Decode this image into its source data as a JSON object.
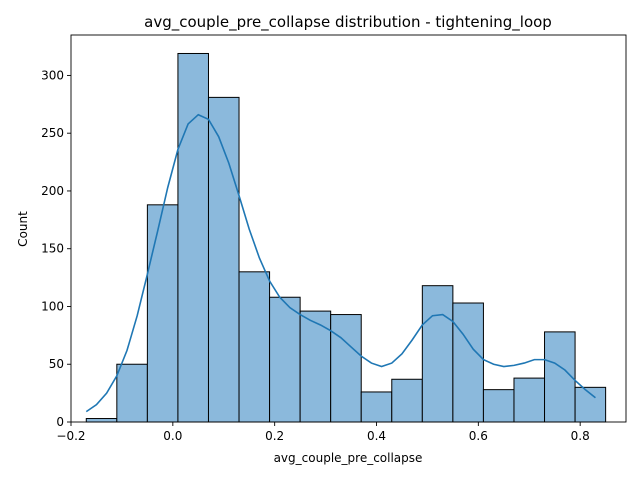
{
  "chart_data": {
    "type": "bar",
    "subtype": "histogram-with-kde",
    "title": "avg_couple_pre_collapse distribution - tightening_loop",
    "xlabel": "avg_couple_pre_collapse",
    "ylabel": "Count",
    "xlim": [
      -0.2,
      0.89
    ],
    "ylim": [
      0,
      335
    ],
    "xticks": [
      -0.2,
      0.0,
      0.2,
      0.4,
      0.6,
      0.8
    ],
    "xtick_labels": [
      "−0.2",
      "0.0",
      "0.2",
      "0.4",
      "0.6",
      "0.8"
    ],
    "yticks": [
      0,
      50,
      100,
      150,
      200,
      250,
      300
    ],
    "ytick_labels": [
      "0",
      "50",
      "100",
      "150",
      "200",
      "250",
      "300"
    ],
    "bins": [
      {
        "x0": -0.17,
        "x1": -0.11,
        "count": 3
      },
      {
        "x0": -0.11,
        "x1": -0.05,
        "count": 50
      },
      {
        "x0": -0.05,
        "x1": 0.01,
        "count": 188
      },
      {
        "x0": 0.01,
        "x1": 0.07,
        "count": 319
      },
      {
        "x0": 0.07,
        "x1": 0.13,
        "count": 281
      },
      {
        "x0": 0.13,
        "x1": 0.19,
        "count": 130
      },
      {
        "x0": 0.19,
        "x1": 0.25,
        "count": 108
      },
      {
        "x0": 0.25,
        "x1": 0.31,
        "count": 96
      },
      {
        "x0": 0.31,
        "x1": 0.37,
        "count": 93
      },
      {
        "x0": 0.37,
        "x1": 0.43,
        "count": 26
      },
      {
        "x0": 0.43,
        "x1": 0.49,
        "count": 37
      },
      {
        "x0": 0.49,
        "x1": 0.55,
        "count": 118
      },
      {
        "x0": 0.55,
        "x1": 0.61,
        "count": 103
      },
      {
        "x0": 0.61,
        "x1": 0.67,
        "count": 28
      },
      {
        "x0": 0.67,
        "x1": 0.73,
        "count": 38
      },
      {
        "x0": 0.73,
        "x1": 0.79,
        "count": 78
      },
      {
        "x0": 0.79,
        "x1": 0.85,
        "count": 30
      }
    ],
    "kde": {
      "x": [
        -0.17,
        -0.15,
        -0.13,
        -0.11,
        -0.09,
        -0.07,
        -0.05,
        -0.03,
        -0.01,
        0.01,
        0.03,
        0.05,
        0.07,
        0.09,
        0.11,
        0.13,
        0.15,
        0.17,
        0.19,
        0.21,
        0.23,
        0.25,
        0.27,
        0.29,
        0.31,
        0.33,
        0.35,
        0.37,
        0.39,
        0.41,
        0.43,
        0.45,
        0.47,
        0.49,
        0.51,
        0.53,
        0.55,
        0.57,
        0.59,
        0.61,
        0.63,
        0.65,
        0.67,
        0.69,
        0.71,
        0.73,
        0.75,
        0.77,
        0.79,
        0.81,
        0.83
      ],
      "y": [
        9,
        15,
        25,
        40,
        62,
        92,
        128,
        165,
        203,
        236,
        258,
        266,
        262,
        247,
        224,
        196,
        167,
        142,
        122,
        108,
        99,
        93,
        88,
        84,
        79,
        73,
        65,
        57,
        51,
        48,
        51,
        59,
        71,
        84,
        92,
        93,
        87,
        76,
        63,
        54,
        50,
        48,
        49,
        51,
        54,
        54,
        51,
        45,
        36,
        28,
        21
      ]
    },
    "colors": {
      "bar_fill": "#8bb9dc",
      "bar_edge": "#000000",
      "kde_line": "#1f77b4"
    },
    "grid": false,
    "legend": "none"
  }
}
